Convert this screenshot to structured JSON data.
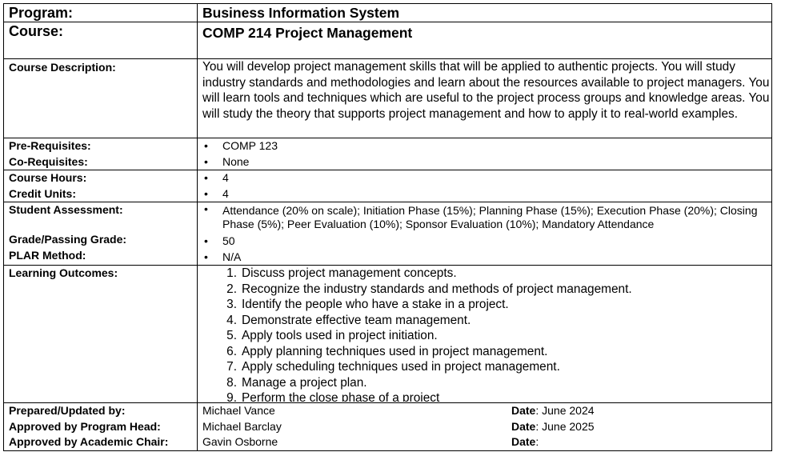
{
  "program": {
    "label": "Program:",
    "value": "Business Information System"
  },
  "course": {
    "label": "Course:",
    "value": "COMP 214 Project Management"
  },
  "description": {
    "label": "Course Description:",
    "text": "You will develop project management skills that will be applied to authentic projects. You will study industry standards and methodologies and learn about the resources available to project managers. You will learn tools and techniques which are useful to the project process groups and knowledge areas. You will study the theory that supports project management and how to apply it to real-world examples."
  },
  "prereq": {
    "label": "Pre-Requisites:",
    "value": "COMP 123"
  },
  "coreq": {
    "label": "Co-Requisites:",
    "value": "None"
  },
  "hours": {
    "label": "Course Hours:",
    "value": "4"
  },
  "credits": {
    "label": "Credit Units:",
    "value": "4"
  },
  "assessment": {
    "label": "Student Assessment:",
    "value": "Attendance (20% on scale); Initiation Phase (15%); Planning Phase (15%); Execution Phase (20%); Closing Phase (5%); Peer Evaluation (10%); Sponsor Evaluation (10%); Mandatory Attendance"
  },
  "grade": {
    "label": "Grade/Passing Grade:",
    "value": "50"
  },
  "plar": {
    "label": "PLAR Method:",
    "value": "N/A"
  },
  "outcomes": {
    "label": "Learning Outcomes:",
    "items": [
      {
        "num": "1.",
        "text": "Discuss project management concepts."
      },
      {
        "num": "2.",
        "text": "Recognize the industry standards and methods of project management."
      },
      {
        "num": "3.",
        "text": "Identify the people who have a stake in a project."
      },
      {
        "num": "4.",
        "text": "Demonstrate effective team management."
      },
      {
        "num": "5.",
        "text": "Apply tools used in project initiation."
      },
      {
        "num": "6.",
        "text": "Apply planning techniques used in project management."
      },
      {
        "num": "7.",
        "text": "Apply scheduling techniques used in project management."
      },
      {
        "num": "8.",
        "text": "Manage a project plan."
      },
      {
        "num": "9.",
        "text": "Perform the close phase of a project"
      }
    ]
  },
  "signoff": {
    "date_label": "Date",
    "prepared": {
      "label": "Prepared/Updated by:",
      "name": "Michael Vance",
      "date": ": June 2024"
    },
    "program_head": {
      "label": "Approved by Program Head:",
      "name": "Michael Barclay",
      "date": ": June 2025"
    },
    "academic_chair": {
      "label": "Approved by Academic Chair:",
      "name": "Gavin Osborne",
      "date": ":"
    }
  }
}
